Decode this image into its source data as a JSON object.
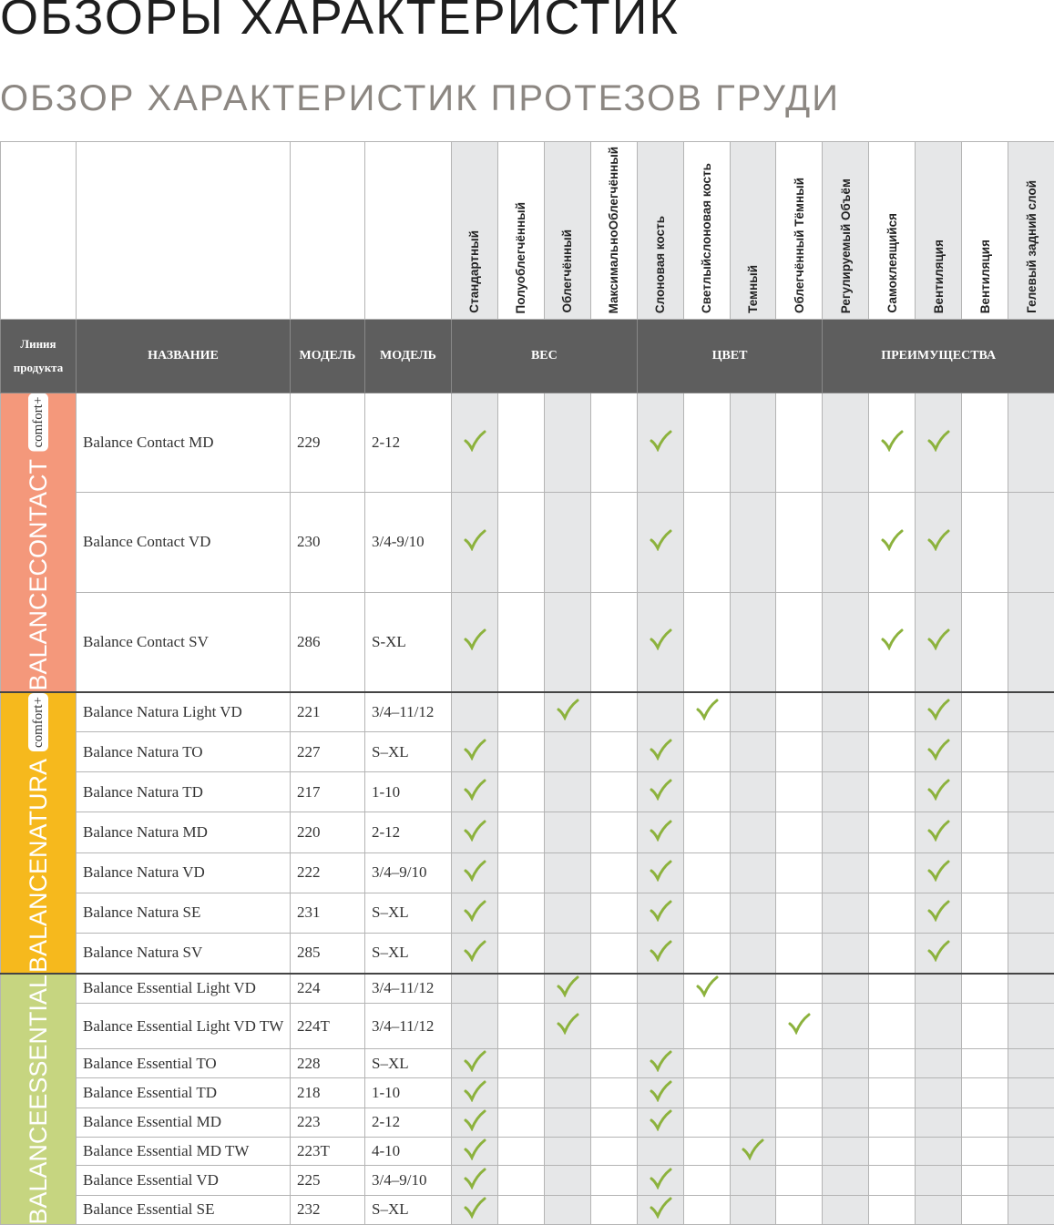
{
  "header": {
    "title": "ОБЗОРЫ ХАРАКТЕРИСТИК",
    "subtitle": "ОБЗОР ХАРАКТЕРИСТИК ПРОТЕЗОВ ГРУДИ"
  },
  "table": {
    "header_labels": {
      "line": "Линия продукта",
      "name": "НАЗВАНИЕ",
      "model": "МОДЕЛЬ",
      "size": "МОДЕЛЬ"
    },
    "groups": [
      "ВЕС",
      "ЦВЕТ",
      "ПРЕИМУЩЕСТВА"
    ],
    "columns": [
      [
        "Стандартный"
      ],
      [
        "Полуоблегчённый"
      ],
      [
        "Облегчённый"
      ],
      [
        "Максимально",
        "Облегчённый"
      ],
      [
        "Слоновая кость"
      ],
      [
        "Светлый",
        "слоновая кость"
      ],
      [
        "Темный"
      ],
      [
        "Облегчённый Тёмный"
      ],
      [
        "Регулируемый Объём"
      ],
      [
        "Самоклеящийся"
      ],
      [
        "Вентиляция"
      ],
      [
        "Вентиляция"
      ],
      [
        "Гелевый задний слой"
      ]
    ],
    "product_lines": [
      {
        "name_lines": [
          "BALANCE",
          "CONTACT"
        ],
        "badge": "comfort+",
        "color": "#f4987b",
        "rows": [
          {
            "name": "Balance Contact MD",
            "model": "229",
            "size": "2-12",
            "checks": [
              true,
              false,
              false,
              false,
              true,
              false,
              false,
              false,
              false,
              true,
              true,
              false,
              false
            ]
          },
          {
            "name": "Balance Contact VD",
            "model": "230",
            "size": "3/4-9/10",
            "checks": [
              true,
              false,
              false,
              false,
              true,
              false,
              false,
              false,
              false,
              true,
              true,
              false,
              false
            ]
          },
          {
            "name": "Balance Contact SV",
            "model": "286",
            "size": "S-XL",
            "checks": [
              true,
              false,
              false,
              false,
              true,
              false,
              false,
              false,
              false,
              true,
              true,
              false,
              false
            ]
          }
        ]
      },
      {
        "name_lines": [
          "BALANCE",
          "NATURA"
        ],
        "badge": "comfort+",
        "color": "#f6b91d",
        "rows": [
          {
            "name": "Balance Natura Light VD",
            "model": "221",
            "size": "3/4–11/12",
            "checks": [
              false,
              false,
              true,
              false,
              false,
              true,
              false,
              false,
              false,
              false,
              true,
              false,
              false
            ]
          },
          {
            "name": "Balance Natura TO",
            "model": "227",
            "size": "S–XL",
            "checks": [
              true,
              false,
              false,
              false,
              true,
              false,
              false,
              false,
              false,
              false,
              true,
              false,
              false
            ]
          },
          {
            "name": "Balance Natura TD",
            "model": "217",
            "size": "1-10",
            "checks": [
              true,
              false,
              false,
              false,
              true,
              false,
              false,
              false,
              false,
              false,
              true,
              false,
              false
            ]
          },
          {
            "name": "Balance Natura MD",
            "model": "220",
            "size": "2-12",
            "checks": [
              true,
              false,
              false,
              false,
              true,
              false,
              false,
              false,
              false,
              false,
              true,
              false,
              false
            ]
          },
          {
            "name": "Balance Natura VD",
            "model": "222",
            "size": "3/4–9/10",
            "checks": [
              true,
              false,
              false,
              false,
              true,
              false,
              false,
              false,
              false,
              false,
              true,
              false,
              false
            ]
          },
          {
            "name": "Balance Natura SE",
            "model": "231",
            "size": "S–XL",
            "checks": [
              true,
              false,
              false,
              false,
              true,
              false,
              false,
              false,
              false,
              false,
              true,
              false,
              false
            ]
          },
          {
            "name": "Balance Natura SV",
            "model": "285",
            "size": "S–XL",
            "checks": [
              true,
              false,
              false,
              false,
              true,
              false,
              false,
              false,
              false,
              false,
              true,
              false,
              false
            ]
          }
        ]
      },
      {
        "name_lines": [
          "BALANCE",
          "ESSENTIAL"
        ],
        "color": "#c6d580",
        "rows": [
          {
            "name": "Balance Essential Light VD",
            "model": "224",
            "size": "3/4–11/12",
            "checks": [
              false,
              false,
              true,
              false,
              false,
              true,
              false,
              false,
              false,
              false,
              false,
              false,
              false
            ]
          },
          {
            "name": "Balance Essential Light VD TW",
            "model": "224T",
            "size": "3/4–11/12",
            "checks": [
              false,
              false,
              true,
              false,
              false,
              false,
              false,
              true,
              false,
              false,
              false,
              false,
              false
            ]
          },
          {
            "name": "Balance Essential TO",
            "model": "228",
            "size": "S–XL",
            "checks": [
              true,
              false,
              false,
              false,
              true,
              false,
              false,
              false,
              false,
              false,
              false,
              false,
              false
            ]
          },
          {
            "name": "Balance Essential TD",
            "model": "218",
            "size": "1-10",
            "checks": [
              true,
              false,
              false,
              false,
              true,
              false,
              false,
              false,
              false,
              false,
              false,
              false,
              false
            ]
          },
          {
            "name": "Balance Essential MD",
            "model": "223",
            "size": "2-12",
            "checks": [
              true,
              false,
              false,
              false,
              true,
              false,
              false,
              false,
              false,
              false,
              false,
              false,
              false
            ]
          },
          {
            "name": "Balance Essential MD TW",
            "model": "223T",
            "size": "4-10",
            "checks": [
              true,
              false,
              false,
              false,
              false,
              false,
              true,
              false,
              false,
              false,
              false,
              false,
              false
            ]
          },
          {
            "name": "Balance Essential VD",
            "model": "225",
            "size": "3/4–9/10",
            "checks": [
              true,
              false,
              false,
              false,
              true,
              false,
              false,
              false,
              false,
              false,
              false,
              false,
              false
            ]
          },
          {
            "name": "Balance Essential SE",
            "model": "232",
            "size": "S–XL",
            "checks": [
              true,
              false,
              false,
              false,
              true,
              false,
              false,
              false,
              false,
              false,
              false,
              false,
              false
            ]
          }
        ]
      }
    ]
  }
}
